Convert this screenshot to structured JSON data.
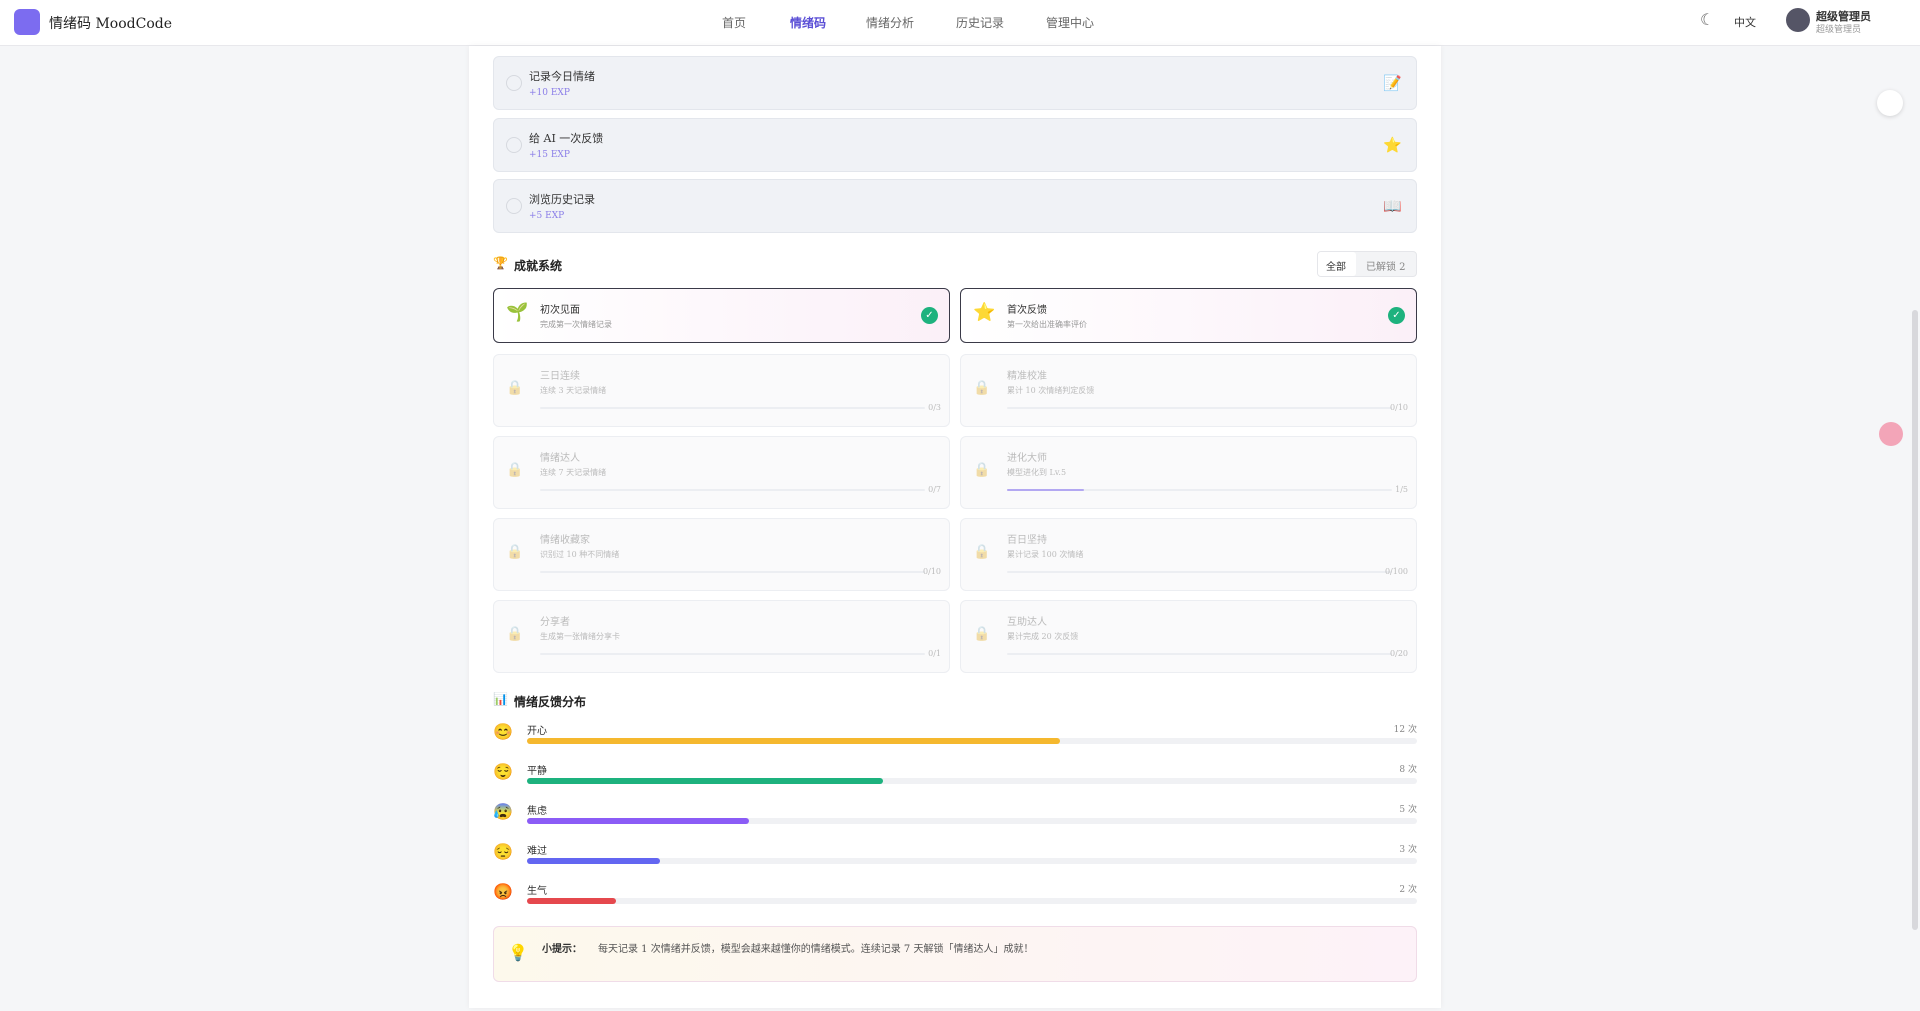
{
  "header": {
    "logo_text": "情绪码 MoodCode",
    "nav": [
      "首页",
      "情绪码",
      "情绪分析",
      "历史记录",
      "管理中心"
    ],
    "active_nav": 1,
    "language": "中文",
    "user_name": "超级管理员",
    "user_role": "超级管理员"
  },
  "tasks": [
    {
      "title": "记录今日情绪",
      "reward": "+10 EXP",
      "icon": "📝"
    },
    {
      "title": "给 AI 一次反馈",
      "reward": "+15 EXP",
      "icon": "⭐"
    },
    {
      "title": "浏览历史记录",
      "reward": "+5 EXP",
      "icon": "📖"
    }
  ],
  "achievements": {
    "icon": "🏆",
    "title": "成就系统",
    "tabs": [
      "全部",
      "已解锁 2"
    ],
    "lock_icon": "🔒",
    "items": [
      {
        "title": "初次见面",
        "desc": "完成第一次情绪记录",
        "icon": "🌱",
        "unlocked": true
      },
      {
        "title": "首次反馈",
        "desc": "第一次给出准确率评价",
        "icon": "⭐",
        "unlocked": true
      },
      {
        "title": "三日连续",
        "desc": "连续 3 天记录情绪",
        "unlocked": false,
        "progress": 0,
        "goal": 3,
        "progress_label": "0/3"
      },
      {
        "title": "精准校准",
        "desc": "累计 10 次情绪判定反馈",
        "unlocked": false,
        "progress": 0,
        "goal": 10,
        "progress_label": "0/10"
      },
      {
        "title": "情绪达人",
        "desc": "连续 7 天记录情绪",
        "unlocked": false,
        "progress": 0,
        "goal": 7,
        "progress_label": "0/7"
      },
      {
        "title": "进化大师",
        "desc": "模型进化到 Lv.5",
        "unlocked": false,
        "progress": 1,
        "goal": 5,
        "progress_label": "1/5"
      },
      {
        "title": "情绪收藏家",
        "desc": "识别过 10 种不同情绪",
        "unlocked": false,
        "progress": 0,
        "goal": 10,
        "progress_label": "0/10"
      },
      {
        "title": "百日坚持",
        "desc": "累计记录 100 次情绪",
        "unlocked": false,
        "progress": 0,
        "goal": 100,
        "progress_label": "0/100"
      },
      {
        "title": "分享者",
        "desc": "生成第一张情绪分享卡",
        "unlocked": false,
        "progress": 0,
        "goal": 1,
        "progress_label": "0/1"
      },
      {
        "title": "互助达人",
        "desc": "累计完成 20 次反馈",
        "unlocked": false,
        "progress": 0,
        "goal": 20,
        "progress_label": "0/20"
      }
    ]
  },
  "distribution": {
    "icon": "📊",
    "title": "情绪反馈分布",
    "categories": [
      "开心",
      "平静",
      "焦虑",
      "难过",
      "生气"
    ],
    "icons": [
      "😊",
      "😌",
      "😰",
      "😔",
      "😡"
    ],
    "values": [
      12,
      8,
      5,
      3,
      2
    ],
    "value_labels": [
      "12 次",
      "8 次",
      "5 次",
      "3 次",
      "2 次"
    ],
    "colors": [
      "#f5b82e",
      "#1db27e",
      "#8b5cf6",
      "#6366f1",
      "#e5484d"
    ]
  },
  "tip": {
    "icon": "💡",
    "label": "小提示：",
    "text": "每天记录 1 次情绪并反馈，模型会越来越懂你的情绪模式。连续记录 7 天解锁「情绪达人」成就！"
  }
}
